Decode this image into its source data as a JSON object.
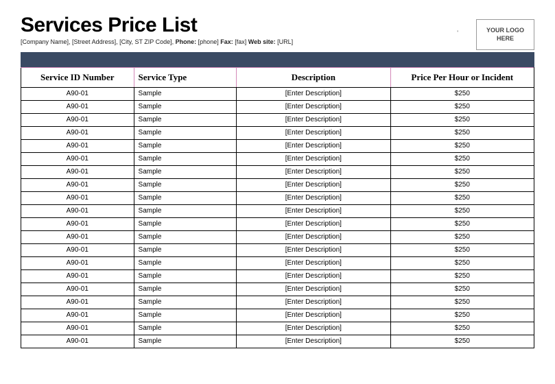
{
  "header": {
    "title": "Services Price List",
    "subheader_parts": {
      "company": "[Company Name]",
      "street": "[Street Address]",
      "city": "[City, ST  ZIP Code]",
      "phone_label": "Phone:",
      "phone": "[phone]",
      "fax_label": "Fax:",
      "fax": "[fax]",
      "web_label": "Web site:",
      "web": "[URL]"
    },
    "logo_line1": "YOUR LOGO",
    "logo_line2": "HERE"
  },
  "band_color": "#3a4a63",
  "table": {
    "columns": [
      "Service ID Number",
      "Service Type",
      "Description",
      "Price Per Hour or Incident"
    ],
    "header_border_color": "#d387b7",
    "row_border_color": "#000000",
    "rows": [
      {
        "id": "A90-01",
        "type": "Sample",
        "desc": "[Enter Description]",
        "price": "$250"
      },
      {
        "id": "A90-01",
        "type": "Sample",
        "desc": "[Enter Description]",
        "price": "$250"
      },
      {
        "id": "A90-01",
        "type": "Sample",
        "desc": "[Enter Description]",
        "price": "$250"
      },
      {
        "id": "A90-01",
        "type": "Sample",
        "desc": "[Enter Description]",
        "price": "$250"
      },
      {
        "id": "A90-01",
        "type": "Sample",
        "desc": "[Enter Description]",
        "price": "$250"
      },
      {
        "id": "A90-01",
        "type": "Sample",
        "desc": "[Enter Description]",
        "price": "$250"
      },
      {
        "id": "A90-01",
        "type": "Sample",
        "desc": "[Enter Description]",
        "price": "$250"
      },
      {
        "id": "A90-01",
        "type": "Sample",
        "desc": "[Enter Description]",
        "price": "$250"
      },
      {
        "id": "A90-01",
        "type": "Sample",
        "desc": "[Enter Description]",
        "price": "$250"
      },
      {
        "id": "A90-01",
        "type": "Sample",
        "desc": "[Enter Description]",
        "price": "$250"
      },
      {
        "id": "A90-01",
        "type": "Sample",
        "desc": "[Enter Description]",
        "price": "$250"
      },
      {
        "id": "A90-01",
        "type": "Sample",
        "desc": "[Enter Description]",
        "price": "$250"
      },
      {
        "id": "A90-01",
        "type": "Sample",
        "desc": "[Enter Description]",
        "price": "$250"
      },
      {
        "id": "A90-01",
        "type": "Sample",
        "desc": "[Enter Description]",
        "price": "$250"
      },
      {
        "id": "A90-01",
        "type": "Sample",
        "desc": "[Enter Description]",
        "price": "$250"
      },
      {
        "id": "A90-01",
        "type": "Sample",
        "desc": "[Enter Description]",
        "price": "$250"
      },
      {
        "id": "A90-01",
        "type": "Sample",
        "desc": "[Enter Description]",
        "price": "$250"
      },
      {
        "id": "A90-01",
        "type": "Sample",
        "desc": "[Enter Description]",
        "price": "$250"
      },
      {
        "id": "A90-01",
        "type": "Sample",
        "desc": "[Enter Description]",
        "price": "$250"
      },
      {
        "id": "A90-01",
        "type": "Sample",
        "desc": "[Enter Description]",
        "price": "$250"
      }
    ]
  }
}
